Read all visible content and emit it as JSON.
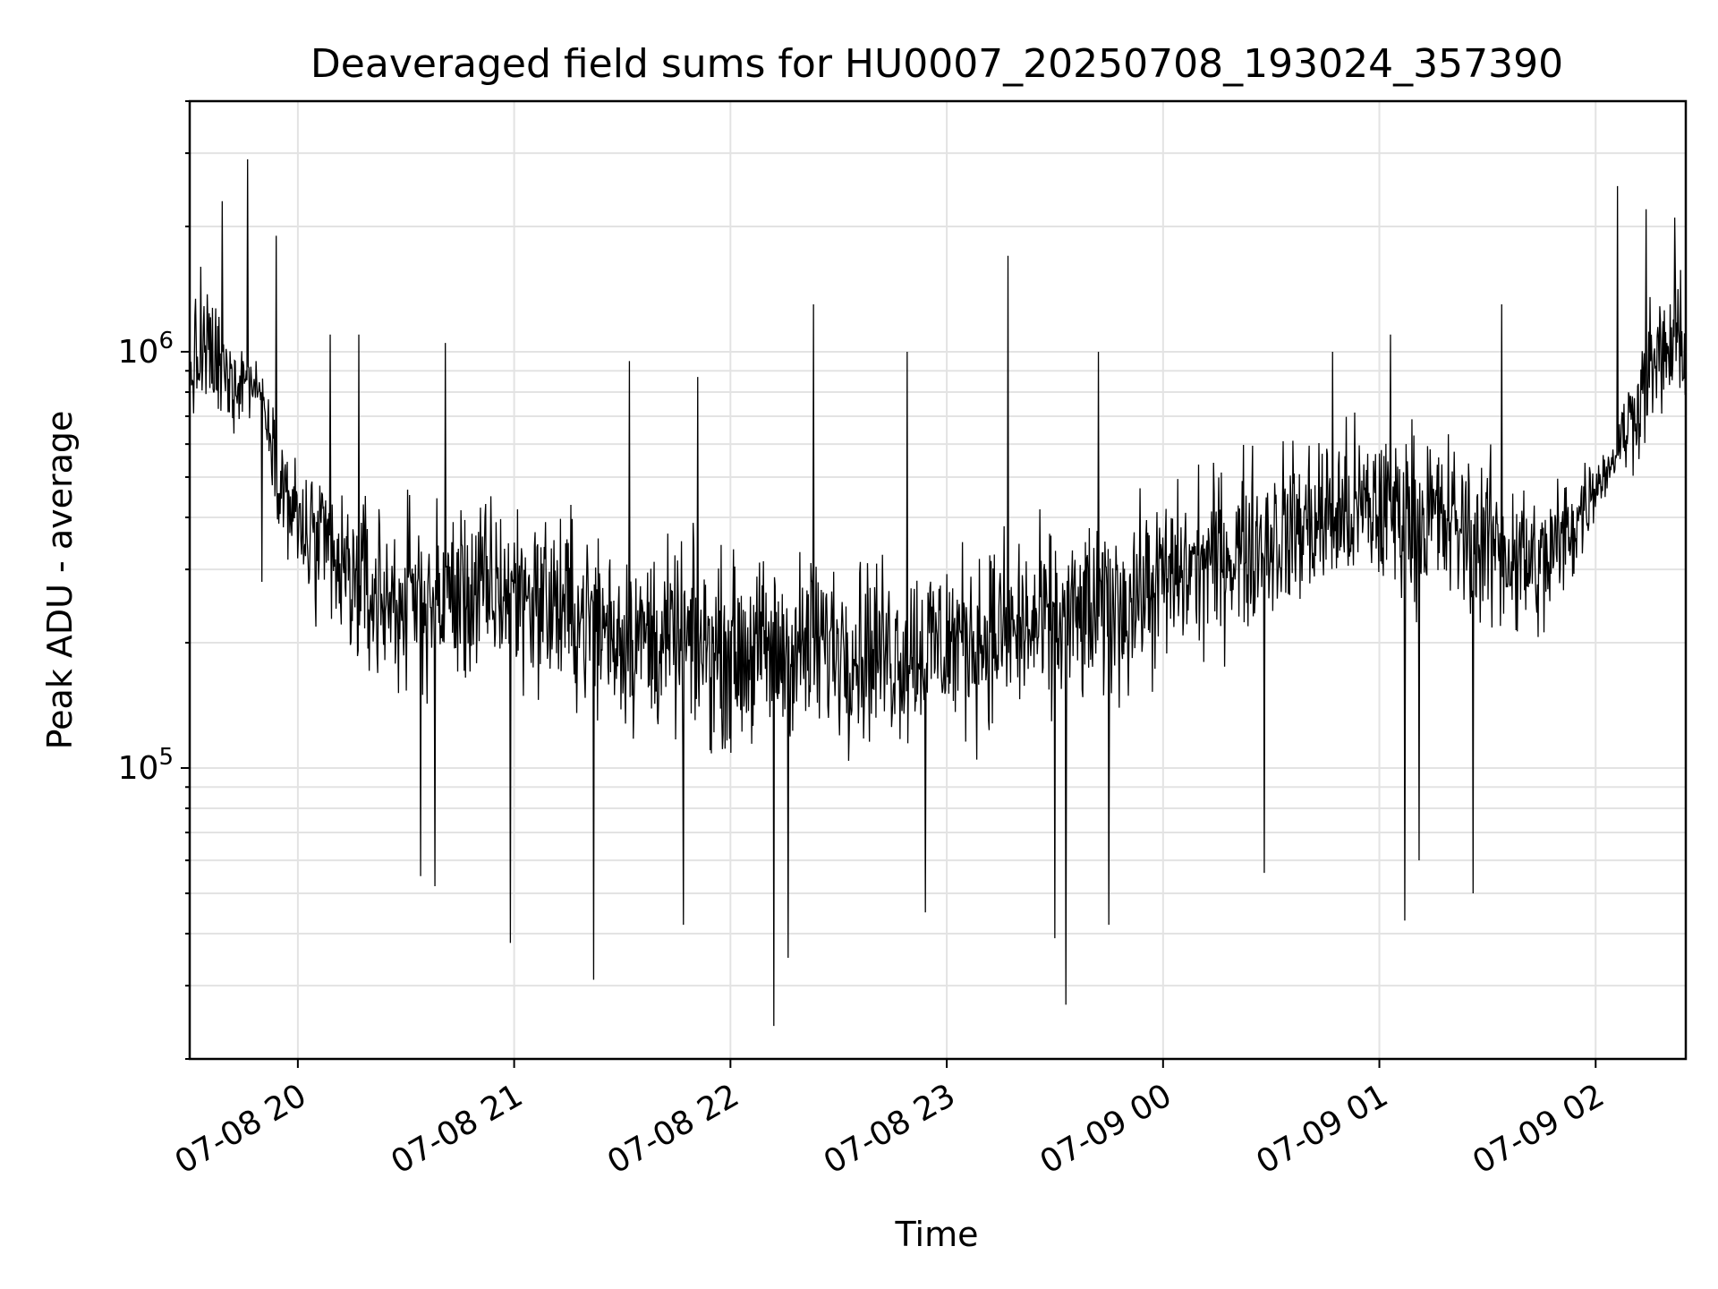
{
  "chart_data": {
    "type": "line",
    "title": "Deaveraged field sums for HU0007_20250708_193024_357390",
    "xlabel": "Time",
    "ylabel": "Peak ADU - average",
    "yscale": "log",
    "ylim": [
      20000,
      4000000
    ],
    "xlim": [
      "2025-07-08 19:30",
      "2025-07-09 02:25"
    ],
    "grid": true,
    "x_tick_labels": [
      "07-08 20",
      "07-08 21",
      "07-08 22",
      "07-08 23",
      "07-09 00",
      "07-09 01",
      "07-09 02"
    ],
    "x_tick_values": [
      "2025-07-08 20:00",
      "2025-07-08 21:00",
      "2025-07-08 22:00",
      "2025-07-08 23:00",
      "2025-07-09 00:00",
      "2025-07-09 01:00",
      "2025-07-09 02:00"
    ],
    "y_major_ticks": [
      100000,
      1000000
    ],
    "y_tick_labels": [
      {
        "base": "10",
        "exp": "5"
      },
      {
        "base": "10",
        "exp": "6"
      }
    ],
    "series": [
      {
        "color": "#000000",
        "x": [
          "2025-07-08 19:30",
          "2025-07-08 19:35",
          "2025-07-08 19:40",
          "2025-07-08 19:45",
          "2025-07-08 19:50",
          "2025-07-08 19:55",
          "2025-07-08 20:00",
          "2025-07-08 20:10",
          "2025-07-08 20:20",
          "2025-07-08 20:30",
          "2025-07-08 20:45",
          "2025-07-08 21:00",
          "2025-07-08 21:15",
          "2025-07-08 21:30",
          "2025-07-08 21:45",
          "2025-07-08 22:00",
          "2025-07-08 22:15",
          "2025-07-08 22:30",
          "2025-07-08 22:45",
          "2025-07-08 23:00",
          "2025-07-08 23:15",
          "2025-07-08 23:30",
          "2025-07-08 23:45",
          "2025-07-09 00:00",
          "2025-07-09 00:15",
          "2025-07-09 00:30",
          "2025-07-09 00:45",
          "2025-07-09 01:00",
          "2025-07-09 01:15",
          "2025-07-09 01:30",
          "2025-07-09 01:45",
          "2025-07-09 01:55",
          "2025-07-09 02:00",
          "2025-07-09 02:05",
          "2025-07-09 02:10",
          "2025-07-09 02:15",
          "2025-07-09 02:20",
          "2025-07-09 02:25"
        ],
        "y": [
          900000,
          1000000,
          850000,
          880000,
          800000,
          500000,
          380000,
          300000,
          260000,
          250000,
          260000,
          270000,
          240000,
          210000,
          200000,
          190000,
          190000,
          200000,
          190000,
          200000,
          210000,
          220000,
          240000,
          280000,
          320000,
          360000,
          400000,
          420000,
          400000,
          350000,
          300000,
          400000,
          480000,
          550000,
          700000,
          900000,
          1000000,
          1050000
        ],
        "noise_log10": [
          0.2,
          0.22,
          0.22,
          0.15,
          0.06,
          0.18,
          0.25,
          0.3,
          0.32,
          0.32,
          0.32,
          0.32,
          0.32,
          0.32,
          0.32,
          0.32,
          0.32,
          0.32,
          0.32,
          0.32,
          0.32,
          0.32,
          0.32,
          0.3,
          0.3,
          0.3,
          0.3,
          0.3,
          0.3,
          0.3,
          0.28,
          0.2,
          0.1,
          0.1,
          0.18,
          0.22,
          0.22,
          0.22
        ],
        "spikes": [
          {
            "x": "2025-07-08 19:33",
            "y": 1600000
          },
          {
            "x": "2025-07-08 19:39",
            "y": 2300000
          },
          {
            "x": "2025-07-08 19:46",
            "y": 2900000
          },
          {
            "x": "2025-07-08 19:50",
            "y": 280000
          },
          {
            "x": "2025-07-08 19:54",
            "y": 1900000
          },
          {
            "x": "2025-07-08 20:09",
            "y": 1100000
          },
          {
            "x": "2025-07-08 20:17",
            "y": 1100000
          },
          {
            "x": "2025-07-08 20:41",
            "y": 1050000
          },
          {
            "x": "2025-07-08 20:34",
            "y": 55000
          },
          {
            "x": "2025-07-08 20:38",
            "y": 52000
          },
          {
            "x": "2025-07-08 20:59",
            "y": 38000
          },
          {
            "x": "2025-07-08 21:22",
            "y": 31000
          },
          {
            "x": "2025-07-08 21:32",
            "y": 950000
          },
          {
            "x": "2025-07-08 21:47",
            "y": 42000
          },
          {
            "x": "2025-07-08 21:51",
            "y": 870000
          },
          {
            "x": "2025-07-08 22:12",
            "y": 24000
          },
          {
            "x": "2025-07-08 22:16",
            "y": 35000
          },
          {
            "x": "2025-07-08 22:23",
            "y": 1300000
          },
          {
            "x": "2025-07-08 22:49",
            "y": 1000000
          },
          {
            "x": "2025-07-08 22:54",
            "y": 45000
          },
          {
            "x": "2025-07-08 23:17",
            "y": 1700000
          },
          {
            "x": "2025-07-08 23:30",
            "y": 39000
          },
          {
            "x": "2025-07-08 23:33",
            "y": 27000
          },
          {
            "x": "2025-07-08 23:42",
            "y": 1000000
          },
          {
            "x": "2025-07-08 23:45",
            "y": 42000
          },
          {
            "x": "2025-07-09 00:28",
            "y": 56000
          },
          {
            "x": "2025-07-09 00:47",
            "y": 1000000
          },
          {
            "x": "2025-07-09 01:03",
            "y": 1100000
          },
          {
            "x": "2025-07-09 01:07",
            "y": 43000
          },
          {
            "x": "2025-07-09 01:11",
            "y": 60000
          },
          {
            "x": "2025-07-09 01:26",
            "y": 50000
          },
          {
            "x": "2025-07-09 01:34",
            "y": 1300000
          },
          {
            "x": "2025-07-09 02:06",
            "y": 2500000
          },
          {
            "x": "2025-07-09 02:14",
            "y": 2200000
          },
          {
            "x": "2025-07-09 02:22",
            "y": 2100000
          }
        ]
      }
    ]
  }
}
